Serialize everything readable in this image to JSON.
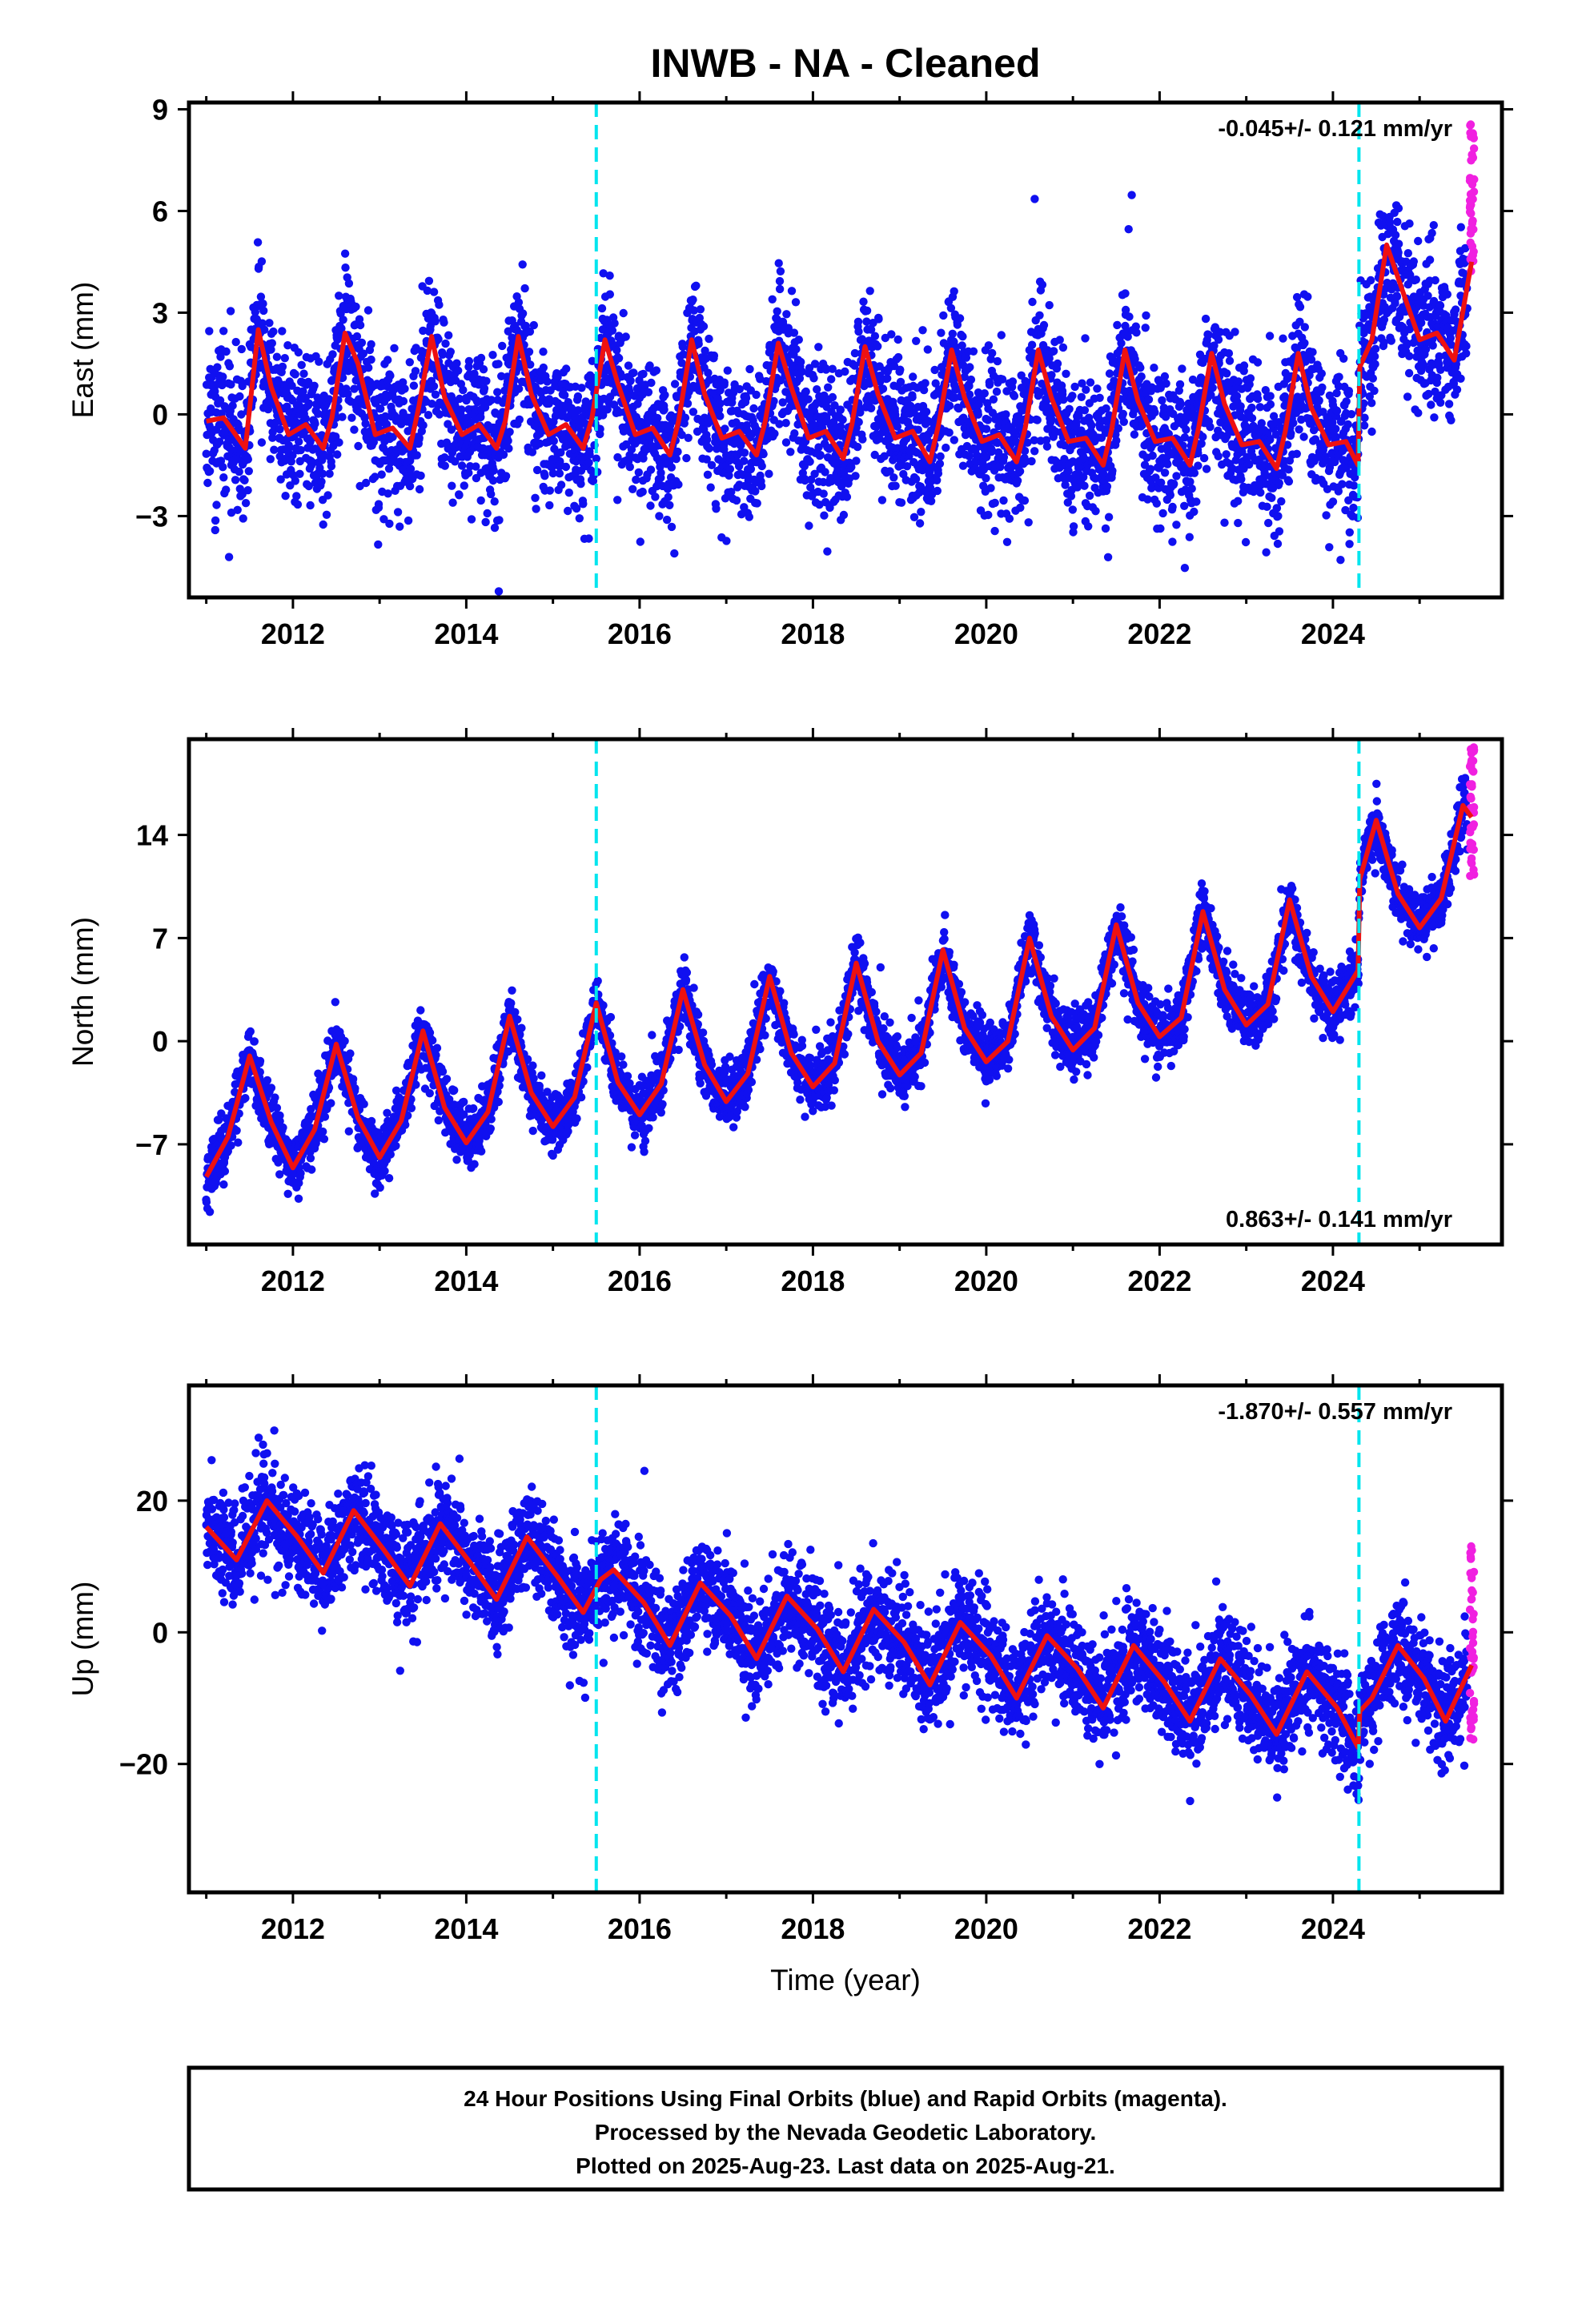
{
  "colors": {
    "final_orbits": "#1010f0",
    "rapid_orbits": "#f020e0",
    "model_fit": "#ee1111",
    "equipment_change": "#00e5ee",
    "frame": "#000000"
  },
  "chart_data": [
    {
      "type": "scatter",
      "panel": "east",
      "title": "INWB  - NA - Cleaned",
      "ylabel": "East (mm)",
      "xlabel": "",
      "xlim": [
        2010.8,
        2025.95
      ],
      "ylim": [
        -5.4,
        9.2
      ],
      "xticks": [
        2012,
        2014,
        2016,
        2018,
        2020,
        2022,
        2024
      ],
      "yticks": [
        -3,
        0,
        3,
        6,
        9
      ],
      "ytick_labels": [
        "−3",
        "0",
        "3",
        "6",
        "9"
      ],
      "rate": "-0.045+/- 0.121 mm/yr",
      "rate_position": "top-right",
      "equipment_changes": [
        2015.5,
        2024.3
      ],
      "grid": false,
      "fit_curve": {
        "x": [
          2011.0,
          2011.2,
          2011.45,
          2011.6,
          2011.75,
          2011.95,
          2012.15,
          2012.35,
          2012.45,
          2012.6,
          2012.75,
          2012.95,
          2013.15,
          2013.35,
          2013.45,
          2013.6,
          2013.75,
          2013.95,
          2014.15,
          2014.35,
          2014.45,
          2014.6,
          2014.75,
          2014.95,
          2015.15,
          2015.35,
          2015.45,
          2015.6,
          2015.75,
          2015.95,
          2016.15,
          2016.35,
          2016.45,
          2016.6,
          2016.75,
          2016.95,
          2017.15,
          2017.35,
          2017.45,
          2017.6,
          2017.75,
          2017.95,
          2018.15,
          2018.35,
          2018.45,
          2018.6,
          2018.75,
          2018.95,
          2019.15,
          2019.35,
          2019.45,
          2019.6,
          2019.75,
          2019.95,
          2020.15,
          2020.35,
          2020.45,
          2020.6,
          2020.75,
          2020.95,
          2021.15,
          2021.35,
          2021.45,
          2021.6,
          2021.75,
          2021.95,
          2022.15,
          2022.35,
          2022.45,
          2022.6,
          2022.75,
          2022.95,
          2023.15,
          2023.35,
          2023.45,
          2023.6,
          2023.75,
          2023.95,
          2024.15,
          2024.29,
          2024.31,
          2024.45,
          2024.62,
          2024.85,
          2025.0,
          2025.2,
          2025.4,
          2025.6
        ],
        "y": [
          -0.2,
          -0.1,
          -1.0,
          2.5,
          0.8,
          -0.6,
          -0.3,
          -1.0,
          -0.1,
          2.4,
          1.5,
          -0.6,
          -0.4,
          -1.0,
          0.2,
          2.3,
          0.5,
          -0.6,
          -0.3,
          -1.0,
          -0.2,
          2.3,
          0.6,
          -0.6,
          -0.3,
          -1.0,
          -0.1,
          2.2,
          0.9,
          -0.6,
          -0.4,
          -1.2,
          -0.2,
          2.2,
          0.6,
          -0.7,
          -0.5,
          -1.2,
          -0.2,
          2.1,
          0.8,
          -0.7,
          -0.5,
          -1.3,
          -0.3,
          2.0,
          0.6,
          -0.7,
          -0.5,
          -1.4,
          -0.3,
          1.9,
          0.5,
          -0.8,
          -0.6,
          -1.4,
          -0.4,
          1.9,
          0.5,
          -0.8,
          -0.7,
          -1.5,
          -0.4,
          1.9,
          0.4,
          -0.8,
          -0.7,
          -1.5,
          -0.4,
          1.8,
          0.3,
          -0.9,
          -0.8,
          -1.6,
          -0.5,
          1.8,
          0.2,
          -0.9,
          -0.8,
          -1.5,
          1.4,
          2.2,
          5.0,
          3.3,
          2.2,
          2.4,
          1.6,
          4.5
        ]
      },
      "points": {
        "seed": 11,
        "count": 4700,
        "x_range": [
          2011.0,
          2025.55
        ],
        "scatter_sd": 1.1,
        "rapid_x_range": [
          2025.58,
          2025.63
        ],
        "rapid_count": 40,
        "rapid_y_range": [
          4.2,
          8.9
        ]
      }
    },
    {
      "type": "scatter",
      "panel": "north",
      "title": "",
      "ylabel": "North (mm)",
      "xlabel": "",
      "xlim": [
        2010.8,
        2025.95
      ],
      "ylim": [
        -13.8,
        20.5
      ],
      "xticks": [
        2012,
        2014,
        2016,
        2018,
        2020,
        2022,
        2024
      ],
      "yticks": [
        -7,
        0,
        7,
        14
      ],
      "ytick_labels": [
        "−7",
        "0",
        "7",
        "14"
      ],
      "rate": "0.863+/- 0.141 mm/yr",
      "rate_position": "bottom-right",
      "equipment_changes": [
        2015.5,
        2024.3
      ],
      "grid": false,
      "fit_curve": {
        "x": [
          2011.0,
          2011.25,
          2011.5,
          2011.75,
          2012.0,
          2012.25,
          2012.5,
          2012.75,
          2013.0,
          2013.25,
          2013.5,
          2013.75,
          2014.0,
          2014.25,
          2014.5,
          2014.75,
          2015.0,
          2015.25,
          2015.5,
          2015.75,
          2016.0,
          2016.25,
          2016.5,
          2016.75,
          2017.0,
          2017.25,
          2017.5,
          2017.75,
          2018.0,
          2018.25,
          2018.5,
          2018.75,
          2019.0,
          2019.25,
          2019.5,
          2019.75,
          2020.0,
          2020.25,
          2020.5,
          2020.75,
          2021.0,
          2021.25,
          2021.5,
          2021.75,
          2022.0,
          2022.25,
          2022.5,
          2022.75,
          2023.0,
          2023.25,
          2023.5,
          2023.75,
          2024.0,
          2024.29,
          2024.31,
          2024.5,
          2024.75,
          2025.0,
          2025.25,
          2025.5,
          2025.6
        ],
        "y": [
          -9.2,
          -6.5,
          -1.0,
          -5.5,
          -8.6,
          -6.0,
          -0.2,
          -5.2,
          -7.9,
          -5.4,
          0.7,
          -4.5,
          -6.9,
          -4.8,
          1.7,
          -3.5,
          -5.8,
          -3.8,
          2.6,
          -2.8,
          -5.0,
          -2.9,
          3.5,
          -1.6,
          -4.1,
          -2.2,
          4.4,
          -0.8,
          -3.1,
          -1.5,
          5.3,
          0.0,
          -2.3,
          -0.8,
          6.2,
          0.9,
          -1.4,
          0.0,
          7.0,
          1.7,
          -0.6,
          0.9,
          7.9,
          2.6,
          0.3,
          1.6,
          8.8,
          3.5,
          1.1,
          2.5,
          9.6,
          4.4,
          2.0,
          4.8,
          11.0,
          15.0,
          10.0,
          7.7,
          9.7,
          16.0,
          15.2
        ]
      },
      "points": {
        "seed": 23,
        "count": 4700,
        "x_range": [
          2011.0,
          2025.55
        ],
        "scatter_sd": 1.0,
        "rapid_x_range": [
          2025.58,
          2025.63
        ],
        "rapid_count": 40,
        "rapid_y_range": [
          11.0,
          20.0
        ]
      }
    },
    {
      "type": "scatter",
      "panel": "up",
      "title": "",
      "ylabel": "Up (mm)",
      "xlabel": "Time (year)",
      "xlim": [
        2010.8,
        2025.95
      ],
      "ylim": [
        -39.5,
        37.5
      ],
      "xticks": [
        2012,
        2014,
        2016,
        2018,
        2020,
        2022,
        2024
      ],
      "yticks": [
        -20,
        0,
        20
      ],
      "ytick_labels": [
        "−20",
        "0",
        "20"
      ],
      "rate": "-1.870+/- 0.557 mm/yr",
      "rate_position": "top-right",
      "equipment_changes": [
        2015.5,
        2024.3
      ],
      "grid": false,
      "fit_curve": {
        "x": [
          2011.0,
          2011.35,
          2011.7,
          2012.05,
          2012.35,
          2012.7,
          2013.05,
          2013.35,
          2013.7,
          2014.05,
          2014.35,
          2014.7,
          2015.05,
          2015.35,
          2015.55,
          2015.7,
          2016.05,
          2016.35,
          2016.7,
          2017.05,
          2017.35,
          2017.7,
          2018.05,
          2018.35,
          2018.7,
          2019.05,
          2019.35,
          2019.7,
          2020.05,
          2020.35,
          2020.7,
          2021.05,
          2021.35,
          2021.7,
          2022.05,
          2022.35,
          2022.7,
          2023.05,
          2023.35,
          2023.7,
          2024.05,
          2024.29,
          2024.31,
          2024.45,
          2024.75,
          2025.05,
          2025.3,
          2025.6
        ],
        "y": [
          16.0,
          11.0,
          20.0,
          14.5,
          9.0,
          18.5,
          12.5,
          7.0,
          16.5,
          10.5,
          5.0,
          14.5,
          8.5,
          3.0,
          8.0,
          9.5,
          4.5,
          -2.0,
          7.5,
          2.5,
          -4.0,
          5.5,
          0.5,
          -6.0,
          3.5,
          -1.5,
          -8.0,
          1.5,
          -3.5,
          -10.0,
          -0.5,
          -5.5,
          -11.5,
          -2.0,
          -7.5,
          -13.5,
          -4.0,
          -9.5,
          -15.5,
          -6.0,
          -11.5,
          -17.5,
          -12.0,
          -10.0,
          -2.0,
          -7.0,
          -13.5,
          -5.0
        ]
      },
      "points": {
        "seed": 37,
        "count": 4700,
        "x_range": [
          2011.0,
          2025.55
        ],
        "scatter_sd": 4.0,
        "rapid_x_range": [
          2025.58,
          2025.63
        ],
        "rapid_count": 40,
        "rapid_y_range": [
          -17.5,
          13.5
        ]
      }
    }
  ],
  "footer": {
    "line1": "24 Hour Positions Using Final Orbits (blue) and Rapid Orbits (magenta).",
    "line2": "Processed by the Nevada Geodetic Laboratory.",
    "line3": "Plotted on 2025-Aug-23. Last data on 2025-Aug-21."
  }
}
